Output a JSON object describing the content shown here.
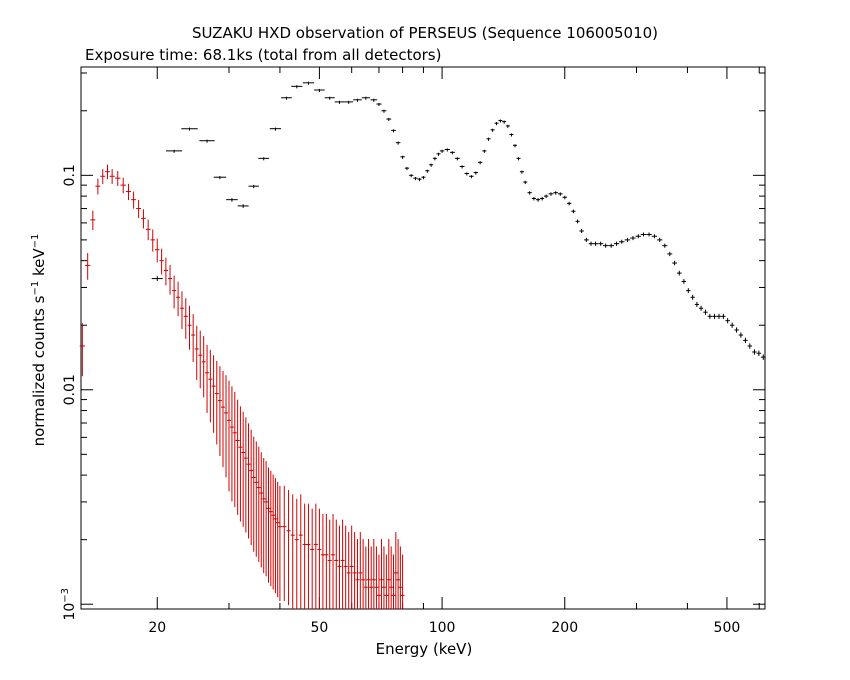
{
  "chart_data": {
    "type": "scatter",
    "title": "SUZAKU HXD observation of PERSEUS (Sequence 106005010)",
    "subtitle": "Exposure time: 68.1ks (total from all detectors)",
    "xlabel": "Energy (keV)",
    "ylabel_main": "normalized counts s",
    "ylabel_sup1": "−1",
    "ylabel_mid": " keV",
    "ylabel_sup2": "−1",
    "x_scale": "log",
    "y_scale": "log",
    "xlim": [
      13,
      620
    ],
    "ylim": [
      0.00095,
      0.32
    ],
    "x_ticks": [
      {
        "value": 20,
        "label": "20"
      },
      {
        "value": 50,
        "label": "50"
      },
      {
        "value": 100,
        "label": "100"
      },
      {
        "value": 200,
        "label": "200"
      },
      {
        "value": 500,
        "label": "500"
      }
    ],
    "y_ticks": [
      {
        "value": 0.1,
        "label": "0.1"
      },
      {
        "value": 0.01,
        "label": "0.01"
      },
      {
        "value": 0.001,
        "base": "10",
        "exp": "−3"
      }
    ],
    "grid": false,
    "legend": "none",
    "series": [
      {
        "color": "#000000",
        "points": [
          [
            20,
            0.033
          ],
          [
            22,
            0.13
          ],
          [
            24,
            0.165
          ],
          [
            26.5,
            0.145
          ],
          [
            28.5,
            0.098
          ],
          [
            30.5,
            0.077
          ],
          [
            32.5,
            0.072
          ],
          [
            34.5,
            0.089
          ],
          [
            36.5,
            0.12
          ],
          [
            39,
            0.165
          ],
          [
            41.5,
            0.23
          ],
          [
            44,
            0.26
          ],
          [
            47,
            0.27
          ],
          [
            50,
            0.25
          ],
          [
            53,
            0.23
          ],
          [
            56,
            0.22
          ],
          [
            59,
            0.22
          ],
          [
            62,
            0.225
          ],
          [
            65,
            0.23
          ],
          [
            68,
            0.225
          ],
          [
            70,
            0.215
          ],
          [
            72,
            0.2
          ],
          [
            74,
            0.183
          ],
          [
            76,
            0.162
          ],
          [
            78,
            0.142
          ],
          [
            80,
            0.122
          ],
          [
            82,
            0.108
          ],
          [
            84,
            0.1
          ],
          [
            86,
            0.097
          ],
          [
            88,
            0.096
          ],
          [
            90,
            0.098
          ],
          [
            92,
            0.105
          ],
          [
            94,
            0.112
          ],
          [
            96,
            0.12
          ],
          [
            98,
            0.126
          ],
          [
            100,
            0.13
          ],
          [
            103,
            0.132
          ],
          [
            106,
            0.128
          ],
          [
            109,
            0.12
          ],
          [
            112,
            0.11
          ],
          [
            115,
            0.102
          ],
          [
            118,
            0.099
          ],
          [
            121,
            0.103
          ],
          [
            124,
            0.115
          ],
          [
            127,
            0.13
          ],
          [
            130,
            0.148
          ],
          [
            133,
            0.163
          ],
          [
            136,
            0.175
          ],
          [
            139,
            0.18
          ],
          [
            142,
            0.178
          ],
          [
            145,
            0.17
          ],
          [
            148,
            0.155
          ],
          [
            151,
            0.138
          ],
          [
            154,
            0.12
          ],
          [
            157,
            0.104
          ],
          [
            160,
            0.093
          ],
          [
            164,
            0.083
          ],
          [
            168,
            0.078
          ],
          [
            172,
            0.077
          ],
          [
            176,
            0.078
          ],
          [
            180,
            0.08
          ],
          [
            185,
            0.082
          ],
          [
            190,
            0.083
          ],
          [
            195,
            0.082
          ],
          [
            200,
            0.079
          ],
          [
            205,
            0.074
          ],
          [
            210,
            0.068
          ],
          [
            215,
            0.061
          ],
          [
            220,
            0.055
          ],
          [
            226,
            0.05
          ],
          [
            232,
            0.048
          ],
          [
            238,
            0.048
          ],
          [
            245,
            0.048
          ],
          [
            252,
            0.047
          ],
          [
            260,
            0.047
          ],
          [
            268,
            0.048
          ],
          [
            276,
            0.049
          ],
          [
            285,
            0.05
          ],
          [
            294,
            0.051
          ],
          [
            303,
            0.052
          ],
          [
            312,
            0.053
          ],
          [
            322,
            0.053
          ],
          [
            332,
            0.052
          ],
          [
            342,
            0.05
          ],
          [
            352,
            0.047
          ],
          [
            362,
            0.043
          ],
          [
            372,
            0.039
          ],
          [
            382,
            0.035
          ],
          [
            392,
            0.032
          ],
          [
            402,
            0.029
          ],
          [
            412,
            0.027
          ],
          [
            422,
            0.025
          ],
          [
            432,
            0.024
          ],
          [
            443,
            0.023
          ],
          [
            454,
            0.022
          ],
          [
            466,
            0.022
          ],
          [
            478,
            0.022
          ],
          [
            490,
            0.022
          ],
          [
            502,
            0.021
          ],
          [
            515,
            0.02
          ],
          [
            528,
            0.019
          ],
          [
            541,
            0.018
          ],
          [
            555,
            0.017
          ],
          [
            569,
            0.016
          ],
          [
            584,
            0.015
          ],
          [
            599,
            0.0148
          ],
          [
            614,
            0.0142
          ]
        ]
      },
      {
        "color": "#d00000",
        "points": [
          [
            13.1,
            0.016
          ],
          [
            13.5,
            0.038
          ],
          [
            13.9,
            0.062
          ],
          [
            14.3,
            0.089
          ],
          [
            14.7,
            0.099
          ],
          [
            15.1,
            0.104
          ],
          [
            15.5,
            0.099
          ],
          [
            16,
            0.097
          ],
          [
            16.5,
            0.09
          ],
          [
            17,
            0.084
          ],
          [
            17.5,
            0.077
          ],
          [
            18,
            0.07
          ],
          [
            18.5,
            0.063
          ],
          [
            19,
            0.056
          ],
          [
            19.5,
            0.05
          ],
          [
            20,
            0.045
          ],
          [
            20.5,
            0.04
          ],
          [
            21,
            0.036
          ],
          [
            21.5,
            0.033
          ],
          [
            22,
            0.029
          ],
          [
            22.5,
            0.027
          ],
          [
            23,
            0.024
          ],
          [
            23.5,
            0.022
          ],
          [
            24,
            0.02
          ],
          [
            24.5,
            0.018
          ],
          [
            25,
            0.0155
          ],
          [
            25.5,
            0.0145
          ],
          [
            26,
            0.0135
          ],
          [
            26.5,
            0.012
          ],
          [
            27,
            0.0112
          ],
          [
            27.5,
            0.0104
          ],
          [
            28,
            0.0096
          ],
          [
            28.5,
            0.0089
          ],
          [
            29,
            0.0083
          ],
          [
            29.5,
            0.0078
          ],
          [
            30,
            0.0072
          ],
          [
            30.5,
            0.0067
          ],
          [
            31,
            0.0063
          ],
          [
            31.5,
            0.0058
          ],
          [
            32,
            0.0054
          ],
          [
            32.5,
            0.0051
          ],
          [
            33,
            0.0048
          ],
          [
            33.5,
            0.0045
          ],
          [
            34,
            0.0042
          ],
          [
            34.5,
            0.0039
          ],
          [
            35,
            0.0037
          ],
          [
            35.5,
            0.0035
          ],
          [
            36,
            0.0033
          ],
          [
            36.5,
            0.0031
          ],
          [
            37,
            0.003
          ],
          [
            37.5,
            0.0028
          ],
          [
            38,
            0.0027
          ],
          [
            38.5,
            0.0026
          ],
          [
            39,
            0.0025
          ],
          [
            39.5,
            0.0024
          ],
          [
            40,
            0.0023
          ],
          [
            41,
            0.0023
          ],
          [
            42,
            0.0022
          ],
          [
            43,
            0.0021
          ],
          [
            44,
            0.002
          ],
          [
            45,
            0.0021
          ],
          [
            46,
            0.0019
          ],
          [
            47,
            0.0019
          ],
          [
            48,
            0.0018
          ],
          [
            49,
            0.0019
          ],
          [
            50,
            0.0018
          ],
          [
            51,
            0.0017
          ],
          [
            52,
            0.0017
          ],
          [
            53,
            0.0016
          ],
          [
            54,
            0.0017
          ],
          [
            55,
            0.0016
          ],
          [
            56,
            0.0015
          ],
          [
            57,
            0.0016
          ],
          [
            58,
            0.0015
          ],
          [
            59,
            0.0014
          ],
          [
            60,
            0.0015
          ],
          [
            61,
            0.0014
          ],
          [
            62,
            0.0013
          ],
          [
            63,
            0.0014
          ],
          [
            64,
            0.0013
          ],
          [
            65,
            0.0012
          ],
          [
            66,
            0.0013
          ],
          [
            67,
            0.0012
          ],
          [
            68,
            0.0013
          ],
          [
            69,
            0.0012
          ],
          [
            70,
            0.0011
          ],
          [
            71,
            0.0013
          ],
          [
            72,
            0.0012
          ],
          [
            73,
            0.0011
          ],
          [
            74,
            0.0013
          ],
          [
            75,
            0.0012
          ],
          [
            76,
            0.0011
          ],
          [
            77,
            0.0014
          ],
          [
            78,
            0.0013
          ],
          [
            79,
            0.0012
          ],
          [
            80,
            0.0011
          ]
        ]
      }
    ]
  }
}
